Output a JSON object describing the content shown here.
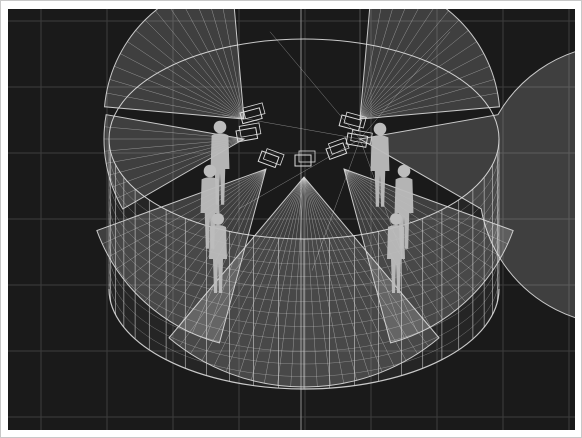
{
  "viewport": {
    "background_color": "#1a1a1a",
    "frame_color": "#ffffff",
    "grid_color": "#3d3d3d",
    "grid_visible": true,
    "center_axis_color": "#8c8c8c"
  },
  "scene": {
    "wireframe_color": "#dcdcdc",
    "fan_fill_color": "#ffffff",
    "figure_color": "#bdbdbd",
    "ring_panels": 24,
    "ring_rows": 12,
    "left_fan_rays": 14,
    "right_fan_rays": 14,
    "front_fan_rays": 22,
    "human_figures": 6,
    "camera_boxes": 7,
    "icons": [
      "wireframe-cylinder-icon",
      "camera-box-icon",
      "human-figure-icon"
    ]
  }
}
